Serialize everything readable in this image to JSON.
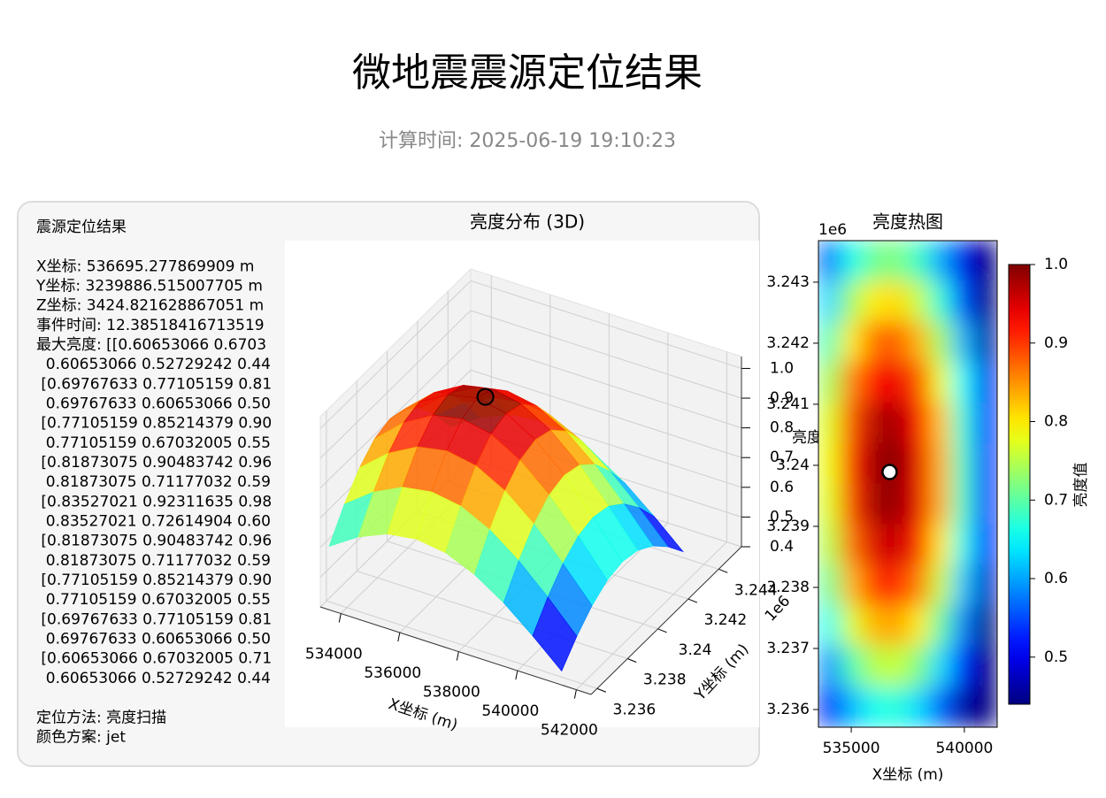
{
  "header": {
    "title": "微地震震源定位结果",
    "subtitle": "计算时间: 2025-06-19 19:10:23"
  },
  "info_panel": {
    "title": "震源定位结果",
    "coords": [
      "X坐标: 536695.277869909 m",
      "Y坐标: 3239886.515007705 m",
      "Z坐标: 3424.821628867051 m",
      "事件时间: 12.38518416713519",
      "最大亮度: [[0.60653066 0.6703",
      "  0.60653066 0.52729242 0.44",
      " [0.69767633 0.77105159 0.81",
      "  0.69767633 0.60653066 0.50",
      " [0.77105159 0.85214379 0.90",
      "  0.77105159 0.67032005 0.55",
      " [0.81873075 0.90483742 0.96",
      "  0.81873075 0.71177032 0.59",
      " [0.83527021 0.92311635 0.98",
      "  0.83527021 0.72614904 0.60",
      " [0.81873075 0.90483742 0.96",
      "  0.81873075 0.71177032 0.59",
      " [0.77105159 0.85214379 0.90",
      "  0.77105159 0.67032005 0.55",
      " [0.69767633 0.77105159 0.81",
      "  0.69767633 0.60653066 0.50",
      " [0.60653066 0.67032005 0.71",
      "  0.60653066 0.52729242 0.44"
    ],
    "method": [
      "定位方法: 亮度扫描",
      "颜色方案: jet"
    ]
  },
  "chart_data": [
    {
      "type": "surface3d",
      "title": "亮度分布 (3D)",
      "colormap": "jet",
      "x": [
        533550,
        534538,
        535525,
        536513,
        537500,
        538488,
        539475,
        540463,
        541450
      ],
      "y": [
        3.2357,
        3.2367,
        3.2377,
        3.2387,
        3.2397,
        3.2407,
        3.2417,
        3.2427,
        3.2437
      ],
      "z": [
        [
          0.607,
          0.67,
          0.712,
          0.726,
          0.712,
          0.67,
          0.607,
          0.527,
          0.44
        ],
        [
          0.698,
          0.771,
          0.819,
          0.835,
          0.819,
          0.771,
          0.698,
          0.607,
          0.507
        ],
        [
          0.771,
          0.852,
          0.905,
          0.923,
          0.905,
          0.852,
          0.771,
          0.67,
          0.56
        ],
        [
          0.819,
          0.905,
          0.961,
          0.98,
          0.961,
          0.905,
          0.819,
          0.712,
          0.595
        ],
        [
          0.835,
          0.923,
          0.98,
          1.0,
          0.98,
          0.923,
          0.835,
          0.726,
          0.607
        ],
        [
          0.819,
          0.905,
          0.961,
          0.98,
          0.961,
          0.905,
          0.819,
          0.712,
          0.595
        ],
        [
          0.771,
          0.852,
          0.905,
          0.923,
          0.905,
          0.852,
          0.771,
          0.67,
          0.56
        ],
        [
          0.698,
          0.771,
          0.819,
          0.835,
          0.819,
          0.771,
          0.698,
          0.607,
          0.507
        ],
        [
          0.607,
          0.67,
          0.712,
          0.726,
          0.712,
          0.67,
          0.607,
          0.527,
          0.44
        ]
      ],
      "xlim": [
        533300,
        542500
      ],
      "ylim": [
        3.2356,
        3.2455
      ],
      "zlim": [
        0.4,
        1.04
      ],
      "xticks": [
        534000,
        536000,
        538000,
        540000,
        542000
      ],
      "yticks": [
        3.236,
        3.238,
        3.24,
        3.242,
        3.244
      ],
      "zticks": [
        0.4,
        0.5,
        0.6,
        0.7,
        0.8,
        0.9,
        {
          "value": 1,
          "label": "1.0"
        }
      ],
      "xlabel": "X坐标 (m)",
      "ylabel": "Y坐标 (m)",
      "zlabel": "亮度值",
      "y_offset_label": "1e6",
      "source": {
        "x": 536695.28,
        "y": 3.23989,
        "z": 1.0
      }
    },
    {
      "type": "heatmap",
      "title": "亮度热图",
      "colormap": "jet",
      "z": [
        [
          0.57,
          0.66,
          0.71,
          0.72,
          0.68,
          0.6,
          0.5,
          0.38
        ],
        [
          0.63,
          0.74,
          0.8,
          0.81,
          0.76,
          0.67,
          0.55,
          0.43
        ],
        [
          0.69,
          0.8,
          0.87,
          0.88,
          0.83,
          0.74,
          0.61,
          0.46
        ],
        [
          0.74,
          0.86,
          0.93,
          0.94,
          0.89,
          0.78,
          0.65,
          0.5
        ],
        [
          0.77,
          0.89,
          0.97,
          0.98,
          0.93,
          0.82,
          0.67,
          0.52
        ],
        [
          0.78,
          0.91,
          0.98,
          1.0,
          0.94,
          0.83,
          0.68,
          0.52
        ],
        [
          0.77,
          0.9,
          0.98,
          0.99,
          0.94,
          0.83,
          0.68,
          0.52
        ],
        [
          0.75,
          0.87,
          0.95,
          0.96,
          0.91,
          0.8,
          0.66,
          0.51
        ],
        [
          0.71,
          0.83,
          0.9,
          0.91,
          0.86,
          0.76,
          0.62,
          0.48
        ],
        [
          0.66,
          0.77,
          0.83,
          0.84,
          0.8,
          0.7,
          0.58,
          0.44
        ],
        [
          0.59,
          0.69,
          0.75,
          0.76,
          0.72,
          0.63,
          0.52,
          0.4
        ],
        [
          0.53,
          0.61,
          0.66,
          0.67,
          0.63,
          0.56,
          0.46,
          0.35
        ]
      ],
      "xlim": [
        533550,
        541450
      ],
      "ylim": [
        3.23571,
        3.24368
      ],
      "xticks": [
        535000,
        540000
      ],
      "yticks": [
        3.236,
        3.237,
        3.238,
        3.239,
        3.24,
        3.241,
        3.242,
        3.243
      ],
      "xlabel": "X坐标 (m)",
      "y_offset_label": "1e6",
      "clim": [
        0.44,
        1.0
      ],
      "colorbar_ticks": [
        0.5,
        0.6,
        0.7,
        0.8,
        0.9,
        {
          "value": 1,
          "label": "1.0"
        }
      ],
      "colorbar_label": "亮度值",
      "source": {
        "x": 536695.28,
        "y": 3.23989
      }
    }
  ]
}
